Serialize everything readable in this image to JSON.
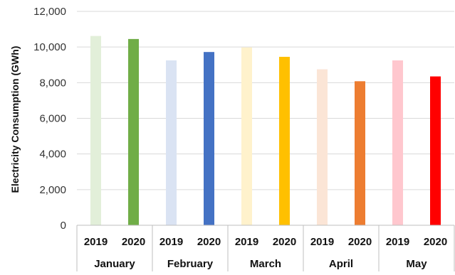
{
  "chart_data": {
    "type": "bar",
    "ylabel": "Electricity Consumption (GWh)",
    "ylim": [
      0,
      12000
    ],
    "yticks": [
      0,
      2000,
      4000,
      6000,
      8000,
      10000,
      12000
    ],
    "ytick_labels": [
      "0",
      "2,000",
      "4,000",
      "6,000",
      "8,000",
      "10,000",
      "12,000"
    ],
    "grid": true,
    "groups": [
      {
        "month": "January",
        "bars": [
          {
            "year": "2019",
            "value": 10620,
            "color": "#e2efd9"
          },
          {
            "year": "2020",
            "value": 10450,
            "color": "#70ad47"
          }
        ]
      },
      {
        "month": "February",
        "bars": [
          {
            "year": "2019",
            "value": 9250,
            "color": "#dae3f3"
          },
          {
            "year": "2020",
            "value": 9720,
            "color": "#4472c4"
          }
        ]
      },
      {
        "month": "March",
        "bars": [
          {
            "year": "2019",
            "value": 9980,
            "color": "#fff2cc"
          },
          {
            "year": "2020",
            "value": 9450,
            "color": "#ffc000"
          }
        ]
      },
      {
        "month": "April",
        "bars": [
          {
            "year": "2019",
            "value": 8750,
            "color": "#fbe5d6"
          },
          {
            "year": "2020",
            "value": 8080,
            "color": "#ed7d31"
          }
        ]
      },
      {
        "month": "May",
        "bars": [
          {
            "year": "2019",
            "value": 9250,
            "color": "#ffc7ce"
          },
          {
            "year": "2020",
            "value": 8350,
            "color": "#ff0000"
          }
        ]
      }
    ]
  }
}
